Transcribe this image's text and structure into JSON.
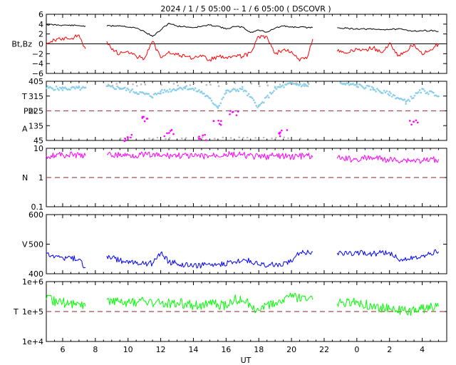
{
  "title": "2024 /  1 /  5   05:00 --  1 /  6   05:00 ( DSCOVR )",
  "xlabel": "UT",
  "x_ticks": [
    "6",
    "8",
    "10",
    "12",
    "14",
    "16",
    "18",
    "20",
    "22",
    "0",
    "2",
    "4"
  ],
  "colors": {
    "bt": "#000000",
    "bz": "#ff0000",
    "theta": "#87ceeb",
    "phi": "#ff00ff",
    "phi_gray": "#bbbbbb",
    "density": "#ff00ff",
    "speed": "#0000ff",
    "temperature": "#00ff00",
    "dashed": "#a05050"
  },
  "chart_data": [
    {
      "type": "line",
      "name": "mag",
      "ylabel": "Bt,Bz",
      "ylim": [
        -6,
        6
      ],
      "y_ticks": [
        "6",
        "4",
        "2",
        "0",
        "−2",
        "−4",
        "−6"
      ],
      "x_range_hours": [
        5,
        29.5
      ],
      "gap_hours": [
        [
          7.4,
          8.7
        ],
        [
          21.3,
          22.8
        ]
      ],
      "series": [
        {
          "name": "Bt",
          "x": [
            5.0,
            6.0,
            7.0,
            7.4,
            8.7,
            9.5,
            10.5,
            11.0,
            11.5,
            12.0,
            12.5,
            13.0,
            13.5,
            14.0,
            15.0,
            15.5,
            16.0,
            16.5,
            17.0,
            17.5,
            18.0,
            18.5,
            19.0,
            19.5,
            20.0,
            20.5,
            21.0,
            21.3,
            22.8,
            23.5,
            24.5,
            25.5,
            26.5,
            27.5,
            28.5,
            29.0
          ],
          "values": [
            3.9,
            3.8,
            3.7,
            3.6,
            3.6,
            3.7,
            3.2,
            2.5,
            1.5,
            2.8,
            4.2,
            3.6,
            3.5,
            3.3,
            3.8,
            3.6,
            3.0,
            3.5,
            3.4,
            2.3,
            2.8,
            2.4,
            3.2,
            3.6,
            3.4,
            3.4,
            3.3,
            3.3,
            3.3,
            3.1,
            3.0,
            2.9,
            3.0,
            2.6,
            2.7,
            2.5
          ]
        },
        {
          "name": "Bz",
          "x": [
            5.0,
            5.5,
            6.0,
            6.5,
            7.0,
            7.4,
            8.7,
            9.0,
            9.5,
            10.0,
            10.5,
            11.0,
            11.5,
            12.0,
            12.5,
            13.0,
            13.5,
            14.0,
            14.5,
            15.0,
            15.5,
            16.0,
            16.5,
            17.0,
            17.5,
            18.0,
            18.5,
            19.0,
            19.5,
            20.0,
            20.5,
            21.0,
            21.3,
            22.8,
            23.5,
            24.0,
            24.5,
            25.0,
            25.5,
            26.0,
            26.5,
            27.0,
            27.5,
            28.0,
            28.5,
            29.0
          ],
          "values": [
            0.3,
            0.8,
            1.2,
            1.0,
            1.8,
            -1.0,
            0.5,
            -1.2,
            -2.0,
            -1.5,
            -2.5,
            -3.0,
            0.5,
            -2.8,
            -1.5,
            -2.2,
            -2.6,
            -3.0,
            -2.6,
            -3.2,
            -2.6,
            -2.7,
            -2.4,
            -2.6,
            -1.8,
            1.5,
            1.5,
            -2.0,
            -1.2,
            -1.5,
            -3.5,
            -2.5,
            1.0,
            -1.5,
            -1.8,
            -1.0,
            -1.2,
            -0.8,
            -1.8,
            0.2,
            -2.5,
            -1.5,
            0.0,
            -2.2,
            -1.2,
            0.0
          ]
        }
      ]
    },
    {
      "type": "scatter",
      "name": "angles",
      "ylabel_lines": [
        "T",
        "Phi",
        "A"
      ],
      "ylim": [
        45,
        405
      ],
      "y_ticks": [
        "405",
        "315",
        "225",
        "135",
        "45"
      ],
      "dashed_at": 225,
      "gap_hours": [
        [
          7.4,
          8.7
        ],
        [
          21.3,
          22.8
        ]
      ],
      "series": [
        {
          "name": "Theta",
          "x": [
            5.0,
            6.0,
            7.0,
            7.4,
            8.7,
            9.5,
            10.5,
            11.5,
            12.0,
            13.5,
            14.5,
            15.5,
            16.0,
            17.0,
            18.0,
            19.0,
            20.0,
            21.0,
            23.0,
            24.0,
            25.0,
            25.5,
            26.0,
            27.0,
            28.0,
            29.0
          ],
          "values": [
            365,
            360,
            362,
            360,
            370,
            365,
            340,
            315,
            340,
            370,
            340,
            250,
            340,
            360,
            250,
            360,
            390,
            380,
            390,
            380,
            360,
            340,
            330,
            280,
            350,
            320
          ]
        },
        {
          "name": "Phi",
          "x": [
            10.0,
            11.0,
            12.5,
            14.5,
            15.5,
            16.5,
            19.5,
            27.5
          ],
          "values": [
            60,
            180,
            90,
            60,
            150,
            210,
            90,
            150
          ]
        }
      ]
    },
    {
      "type": "line",
      "name": "density",
      "scale": "log",
      "ylabel": "N",
      "ylim": [
        0.1,
        10
      ],
      "y_ticks": [
        "10",
        "1",
        "0.1"
      ],
      "dashed_at": 1,
      "gap_hours": [
        [
          7.4,
          8.7
        ],
        [
          21.3,
          22.8
        ]
      ],
      "series": [
        {
          "name": "N",
          "x": [
            5.0,
            6.0,
            7.0,
            7.4,
            8.7,
            10.0,
            11.0,
            12.0,
            13.0,
            14.0,
            15.0,
            16.0,
            17.0,
            18.0,
            19.0,
            20.0,
            21.0,
            21.3,
            22.8,
            24.0,
            25.0,
            26.0,
            27.0,
            28.0,
            29.0
          ],
          "values": [
            5.5,
            6.0,
            5.8,
            5.5,
            6.0,
            5.8,
            6.0,
            5.5,
            5.8,
            5.2,
            5.5,
            6.2,
            5.8,
            5.0,
            5.5,
            5.2,
            5.5,
            5.0,
            4.5,
            4.2,
            4.8,
            4.0,
            4.0,
            3.8,
            4.2
          ]
        }
      ]
    },
    {
      "type": "line",
      "name": "speed",
      "ylabel": "V",
      "ylim": [
        400,
        600
      ],
      "y_ticks": [
        "600",
        "500",
        "400"
      ],
      "gap_hours": [
        [
          7.4,
          8.7
        ],
        [
          21.3,
          22.8
        ]
      ],
      "series": [
        {
          "name": "V",
          "x": [
            5.0,
            6.0,
            7.0,
            7.4,
            8.7,
            9.5,
            10.5,
            11.5,
            12.0,
            12.5,
            13.5,
            14.5,
            15.5,
            16.5,
            17.0,
            17.5,
            18.0,
            19.0,
            20.0,
            20.5,
            21.3,
            22.8,
            24.0,
            25.0,
            26.0,
            26.5,
            27.5,
            28.5,
            29.0
          ],
          "values": [
            470,
            455,
            450,
            420,
            460,
            445,
            435,
            435,
            470,
            440,
            430,
            428,
            432,
            440,
            445,
            445,
            430,
            430,
            440,
            470,
            475,
            470,
            470,
            468,
            472,
            450,
            455,
            470,
            475
          ]
        }
      ]
    },
    {
      "type": "line",
      "name": "temperature",
      "scale": "log",
      "ylabel": "T",
      "ylim": [
        10000,
        1000000
      ],
      "y_ticks": [
        "1e+6",
        "1e+5",
        "1e+4"
      ],
      "dashed_at": 100000,
      "gap_hours": [
        [
          7.4,
          8.7
        ],
        [
          21.3,
          22.8
        ]
      ],
      "series": [
        {
          "name": "Tp",
          "x": [
            5.0,
            6.0,
            7.0,
            7.4,
            8.7,
            10.0,
            11.0,
            12.0,
            13.0,
            14.0,
            15.0,
            16.0,
            16.5,
            17.0,
            17.5,
            18.0,
            19.0,
            20.0,
            21.0,
            21.3,
            22.8,
            24.0,
            25.0,
            26.0,
            27.0,
            28.0,
            29.0
          ],
          "values": [
            250000,
            200000,
            180000,
            150000,
            250000,
            200000,
            220000,
            180000,
            200000,
            160000,
            180000,
            150000,
            250000,
            230000,
            160000,
            110000,
            180000,
            300000,
            250000,
            250000,
            180000,
            200000,
            150000,
            120000,
            100000,
            120000,
            150000
          ]
        }
      ]
    }
  ]
}
